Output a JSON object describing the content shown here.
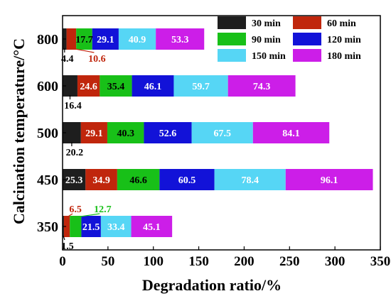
{
  "chart_data": {
    "type": "bar",
    "orientation": "horizontal",
    "stacked": true,
    "categories": [
      "350",
      "450",
      "500",
      "600",
      "800"
    ],
    "series": [
      {
        "name": "30 min",
        "color": "#1e1e1e",
        "label_color": "#ffffff",
        "values": [
          1.5,
          25.3,
          20.2,
          16.4,
          4.4
        ],
        "labels": [
          "1.5",
          "25.3",
          "20.2",
          "16.4",
          "4.4"
        ]
      },
      {
        "name": "60 min",
        "color": "#c0260c",
        "label_color": "#ffffff",
        "values": [
          6.5,
          34.9,
          29.1,
          24.6,
          10.6
        ],
        "labels": [
          "6.5",
          "34.9",
          "29.1",
          "24.6",
          "10.6"
        ]
      },
      {
        "name": "90 min",
        "color": "#18c018",
        "label_color": "#000000",
        "values": [
          12.7,
          46.6,
          40.3,
          35.4,
          17.7
        ],
        "labels": [
          "12.7",
          "46.6",
          "40.3",
          "35.4",
          "17.7"
        ]
      },
      {
        "name": "120 min",
        "color": "#1212d8",
        "label_color": "#ffffff",
        "values": [
          21.5,
          60.5,
          52.6,
          46.1,
          29.1
        ],
        "labels": [
          "21.5",
          "60.5",
          "52.6",
          "46.1",
          "29.1"
        ]
      },
      {
        "name": "150 min",
        "color": "#56d6f5",
        "label_color": "#ffffff",
        "values": [
          33.4,
          78.4,
          67.5,
          59.7,
          40.9
        ],
        "labels": [
          "33.4",
          "78.4",
          "67.5",
          "59.7",
          "40.9"
        ]
      },
      {
        "name": "180 min",
        "color": "#cc1ee8",
        "label_color": "#ffffff",
        "values": [
          45.1,
          96.1,
          84.1,
          74.3,
          53.3
        ],
        "labels": [
          "45.1",
          "96.1",
          "84.1",
          "74.3",
          "53.3"
        ]
      }
    ],
    "xlabel": "Degradation ratio/%",
    "ylabel": "Calcination temperature/°C",
    "xlim": [
      0,
      350
    ],
    "xticks": [
      0,
      50,
      100,
      150,
      200,
      250,
      300,
      350
    ],
    "legend": {
      "placement": "top-right",
      "columns": 2
    },
    "outside_labels": [
      {
        "category": "350",
        "series": "30 min",
        "text": "1.5",
        "color": "#000000",
        "side": "below"
      },
      {
        "category": "350",
        "series": "60 min",
        "text": "6.5",
        "color": "#c0260c",
        "side": "above"
      },
      {
        "category": "350",
        "series": "90 min",
        "text": "12.7",
        "color": "#18c018",
        "side": "above"
      },
      {
        "category": "500",
        "series": "30 min",
        "text": "20.2",
        "color": "#000000",
        "side": "below"
      },
      {
        "category": "600",
        "series": "30 min",
        "text": "16.4",
        "color": "#000000",
        "side": "below"
      },
      {
        "category": "800",
        "series": "30 min",
        "text": "4.4",
        "color": "#000000",
        "side": "below"
      },
      {
        "category": "800",
        "series": "60 min",
        "text": "10.6",
        "color": "#c0260c",
        "side": "below"
      }
    ]
  }
}
